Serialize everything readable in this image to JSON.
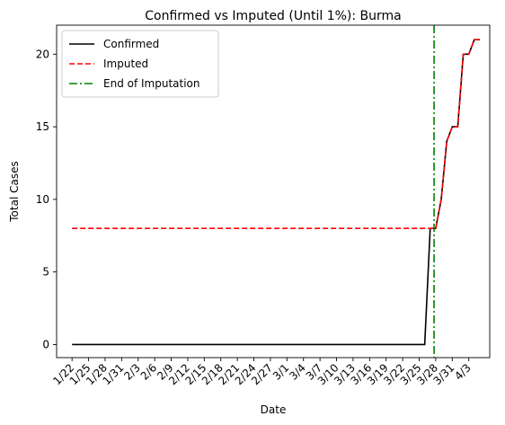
{
  "chart_data": {
    "type": "line",
    "title": "Confirmed vs Imputed (Until 1%): Burma",
    "xlabel": "Date",
    "ylabel": "Total Cases",
    "x_ticks": [
      "1/22",
      "1/25",
      "1/28",
      "1/31",
      "2/3",
      "2/6",
      "2/9",
      "2/12",
      "2/15",
      "2/18",
      "2/21",
      "2/24",
      "2/27",
      "3/1",
      "3/4",
      "3/7",
      "3/10",
      "3/13",
      "3/16",
      "3/19",
      "3/22",
      "3/25",
      "3/28",
      "3/31",
      "4/3"
    ],
    "y_ticks": [
      0,
      5,
      10,
      15,
      20
    ],
    "ylim": [
      -0.9,
      22.0
    ],
    "x_range_days": [
      -2.8,
      75.8
    ],
    "grid": false,
    "legend_position": "top-left",
    "series": [
      {
        "name": "Confirmed",
        "color": "#000000",
        "style": "solid",
        "points": [
          [
            0,
            0
          ],
          [
            64,
            0
          ],
          [
            65,
            8
          ],
          [
            66,
            8
          ],
          [
            67,
            10
          ],
          [
            68,
            14
          ],
          [
            69,
            15
          ],
          [
            70,
            15
          ],
          [
            71,
            20
          ],
          [
            72,
            20
          ],
          [
            73,
            21
          ],
          [
            74,
            21
          ]
        ]
      },
      {
        "name": "Imputed",
        "color": "#ff0000",
        "style": "dashed",
        "points": [
          [
            0,
            8
          ],
          [
            65,
            8
          ],
          [
            66,
            8
          ],
          [
            67,
            10
          ],
          [
            68,
            14
          ],
          [
            69,
            15
          ],
          [
            70,
            15
          ],
          [
            71,
            20
          ],
          [
            72,
            20
          ],
          [
            73,
            21
          ],
          [
            74,
            21
          ]
        ]
      },
      {
        "name": "End of Imputation",
        "color": "#008000",
        "style": "dashdot",
        "vline_x": 65.7
      }
    ]
  }
}
